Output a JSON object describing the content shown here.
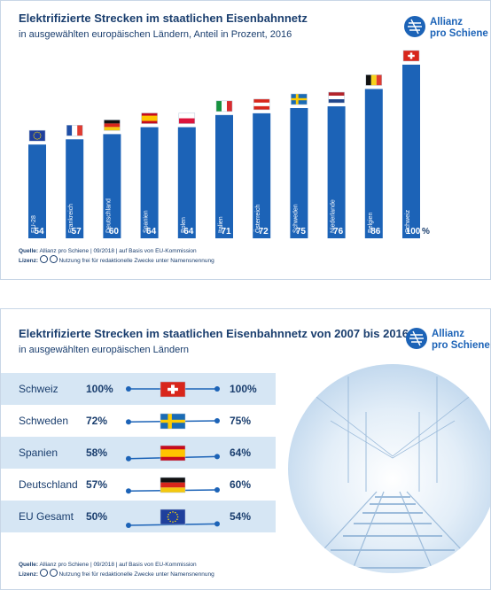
{
  "brand": {
    "line1": "Allianz",
    "line2": "pro Schiene",
    "color": "#1c63b7"
  },
  "chart1": {
    "title": "Elektrifizierte Strecken im staatlichen Eisenbahnnetz",
    "subtitle": "in ausgewählten europäischen Ländern, Anteil in Prozent, 2016",
    "source_label": "Quelle:",
    "source_text": "Allianz pro Schiene | 09/2018 | auf Basis von EU-Kommission",
    "license_label": "Lizenz:",
    "license_text": "Nutzung frei für redaktionelle Zwecke unter Namensnennung",
    "percent_sign": "%"
  },
  "chart2": {
    "title": "Elektrifizierte Strecken im staatlichen Eisenbahnnetz von 2007 bis 2016",
    "subtitle": "in ausgewählten europäischen Ländern",
    "source_label": "Quelle:",
    "source_text": "Allianz pro Schiene | 09/2018 | auf Basis von EU-Kommission",
    "license_label": "Lizenz:",
    "license_text": "Nutzung frei für redaktionelle Zwecke unter Namensnennung"
  },
  "colors": {
    "bar": "#1c63b7",
    "navy": "#1a3e6e",
    "row_light": "#d6e6f4",
    "row_white": "#ffffff",
    "line": "#1c63b7"
  },
  "chart_data": [
    {
      "type": "bar",
      "title": "Elektrifizierte Strecken im staatlichen Eisenbahnnetz",
      "subtitle": "in ausgewählten europäischen Ländern, Anteil in Prozent, 2016",
      "categories": [
        "EU-28",
        "Frankreich",
        "Deutschland",
        "Spanien",
        "Polen",
        "Italien",
        "Österreich",
        "Schweden",
        "Niederlande",
        "Belgien",
        "Schweiz"
      ],
      "flags": [
        "eu",
        "fr",
        "de",
        "es",
        "pl",
        "it",
        "at",
        "se",
        "nl",
        "be",
        "ch"
      ],
      "values": [
        54,
        57,
        60,
        64,
        64,
        71,
        72,
        75,
        76,
        86,
        100
      ],
      "ylim": [
        0,
        100
      ],
      "grid": false
    },
    {
      "type": "slope",
      "title": "Elektrifizierte Strecken im staatlichen Eisenbahnnetz von 2007 bis 2016",
      "subtitle": "in ausgewählten europäischen Ländern",
      "series": [
        {
          "name": "Schweiz",
          "flag": "ch",
          "values": [
            100,
            100
          ]
        },
        {
          "name": "Schweden",
          "flag": "se",
          "values": [
            72,
            75
          ]
        },
        {
          "name": "Spanien",
          "flag": "es",
          "values": [
            58,
            64
          ]
        },
        {
          "name": "Deutschland",
          "flag": "de",
          "values": [
            57,
            60
          ]
        },
        {
          "name": "EU Gesamt",
          "flag": "eu",
          "values": [
            50,
            54
          ]
        }
      ],
      "x": [
        2007,
        2016
      ]
    }
  ]
}
